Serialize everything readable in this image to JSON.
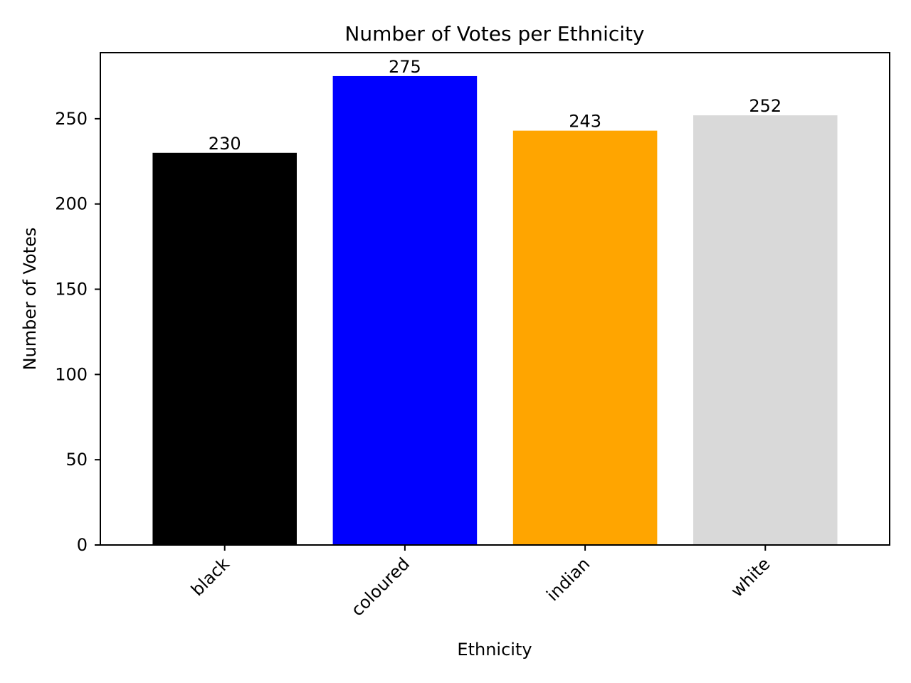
{
  "chart_data": {
    "type": "bar",
    "title": "Number of Votes per Ethnicity",
    "xlabel": "Ethnicity",
    "ylabel": "Number of Votes",
    "categories": [
      "black",
      "coloured",
      "indian",
      "white"
    ],
    "values": [
      230,
      275,
      243,
      252
    ],
    "colors": [
      "#000000",
      "#0000ff",
      "#ffa500",
      "#d9d9d9"
    ],
    "ylim": [
      0,
      288.75
    ],
    "yticks": [
      0,
      50,
      100,
      150,
      200,
      250
    ],
    "x_tick_rotation_deg": 45,
    "grid": false,
    "legend": "none"
  }
}
